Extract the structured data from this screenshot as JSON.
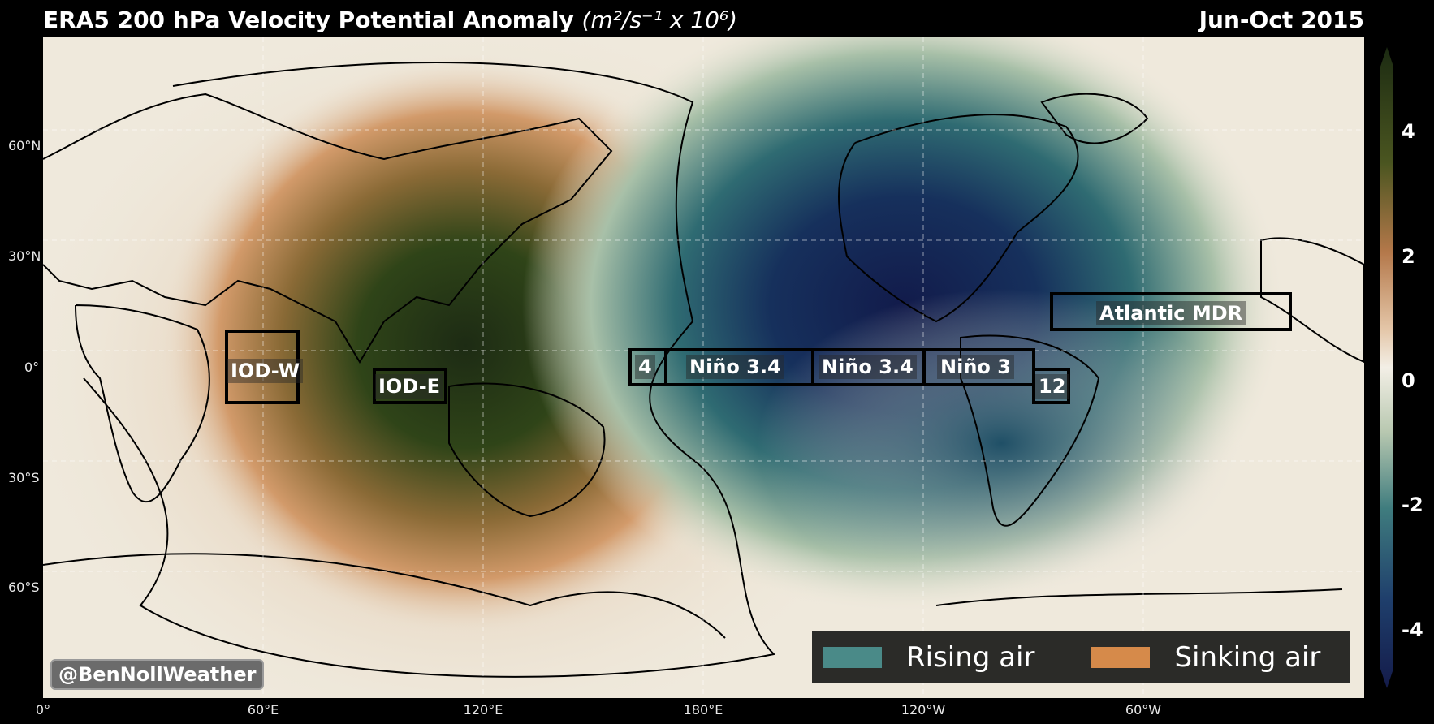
{
  "title": {
    "text": "ERA5 200 hPa Velocity Potential Anomaly",
    "units": "(m²/s⁻¹ x 10⁶)"
  },
  "date": "Jun-Oct 2015",
  "lat_labels": [
    "60°N",
    "30°N",
    "0°",
    "30°S",
    "60°S"
  ],
  "lon_labels": [
    "0°",
    "60°E",
    "120°E",
    "180°E",
    "120°W",
    "60°W"
  ],
  "regions": [
    {
      "name": "IOD-W",
      "label": "IOD-W"
    },
    {
      "name": "IOD-E",
      "label": "IOD-E"
    },
    {
      "name": "nino-4",
      "label": "4"
    },
    {
      "name": "nino-34-west",
      "label": "Niño 3.4"
    },
    {
      "name": "nino-34-east",
      "label": "Niño 3.4"
    },
    {
      "name": "nino-3",
      "label": "Niño 3"
    },
    {
      "name": "nino-12",
      "label": "12"
    },
    {
      "name": "atlantic-mdr",
      "label": "Atlantic MDR"
    }
  ],
  "legend": {
    "rising": {
      "label": "Rising air",
      "color": "#4a8a88"
    },
    "sinking": {
      "label": "Sinking air",
      "color": "#d68a4a"
    }
  },
  "credit": "@BenNollWeather",
  "colorbar": {
    "ticks": [
      "4",
      "2",
      "0",
      "-2",
      "-4"
    ],
    "top_color": "#1c2b12",
    "mid_color": "#f3efe6",
    "bottom_color": "#141b4a"
  }
}
